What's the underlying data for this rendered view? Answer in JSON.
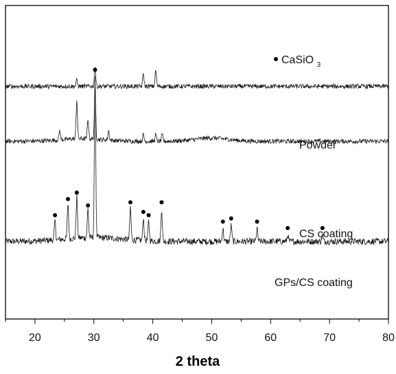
{
  "chart_data": {
    "type": "line",
    "xlabel": "2 theta",
    "ylabel": "",
    "xlim": [
      15,
      80
    ],
    "x_ticks": [
      "20",
      "30",
      "40",
      "50",
      "60",
      "70",
      "80"
    ],
    "grid": false,
    "legend": {
      "marker": "dot",
      "label": "CaSiO",
      "subscript": "3",
      "placement": "top-right"
    },
    "series": [
      {
        "name": "Powder",
        "baseline": 4,
        "peaks": [
          {
            "x": 23.4,
            "y": 6
          },
          {
            "x": 25.6,
            "y": 11
          },
          {
            "x": 27.1,
            "y": 13
          },
          {
            "x": 29.0,
            "y": 9
          },
          {
            "x": 30.2,
            "y": 51
          },
          {
            "x": 36.2,
            "y": 10
          },
          {
            "x": 38.4,
            "y": 7
          },
          {
            "x": 39.3,
            "y": 6
          },
          {
            "x": 41.5,
            "y": 10
          },
          {
            "x": 51.9,
            "y": 4
          },
          {
            "x": 53.3,
            "y": 5
          },
          {
            "x": 57.7,
            "y": 4
          },
          {
            "x": 62.9,
            "y": 2
          },
          {
            "x": 68.8,
            "y": 2
          }
        ],
        "marked_peaks_x": [
          23.4,
          25.6,
          27.1,
          29.0,
          30.2,
          36.2,
          38.4,
          39.3,
          41.5,
          51.9,
          53.3,
          57.7,
          62.9,
          68.8
        ]
      },
      {
        "name": "CS coating",
        "baseline": 2,
        "peaks": [
          {
            "x": 24.2,
            "y": 3
          },
          {
            "x": 27.1,
            "y": 12
          },
          {
            "x": 29.0,
            "y": 6
          },
          {
            "x": 30.2,
            "y": 16
          },
          {
            "x": 32.5,
            "y": 3
          },
          {
            "x": 38.4,
            "y": 2
          },
          {
            "x": 40.5,
            "y": 2
          },
          {
            "x": 41.6,
            "y": 2
          }
        ],
        "marked_peaks_x": []
      },
      {
        "name": "GPs/CS coating",
        "baseline": 1,
        "peaks": [
          {
            "x": 27.1,
            "y": 2
          },
          {
            "x": 30.2,
            "y": 6
          },
          {
            "x": 38.4,
            "y": 4
          },
          {
            "x": 40.5,
            "y": 5
          }
        ],
        "marked_peaks_x": []
      }
    ]
  }
}
